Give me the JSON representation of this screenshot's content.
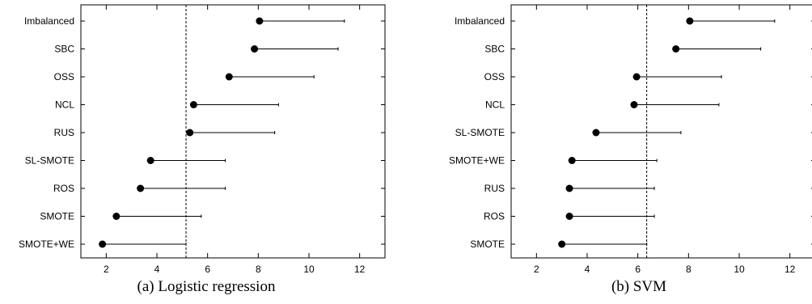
{
  "chart_data": [
    {
      "type": "dot-interval",
      "caption": "(a)  Logistic regression",
      "xlim": [
        1,
        13
      ],
      "xticks": [
        2,
        4,
        6,
        8,
        10,
        12
      ],
      "reference_line": 5.15,
      "grid": false,
      "rows": [
        {
          "label": "Imbalanced",
          "value": 8.05,
          "upper": 11.4
        },
        {
          "label": "SBC",
          "value": 7.85,
          "upper": 11.15
        },
        {
          "label": "OSS",
          "value": 6.85,
          "upper": 10.2
        },
        {
          "label": "NCL",
          "value": 5.45,
          "upper": 8.8
        },
        {
          "label": "RUS",
          "value": 5.3,
          "upper": 8.65
        },
        {
          "label": "SL-SMOTE",
          "value": 3.75,
          "upper": 6.7
        },
        {
          "label": "ROS",
          "value": 3.35,
          "upper": 6.7
        },
        {
          "label": "SMOTE",
          "value": 2.4,
          "upper": 5.75
        },
        {
          "label": "SMOTE+WE",
          "value": 1.85,
          "upper": 5.15
        }
      ]
    },
    {
      "type": "dot-interval",
      "caption": "(b)  SVM",
      "xlim": [
        1,
        13
      ],
      "xticks": [
        2,
        4,
        6,
        8,
        10,
        12
      ],
      "reference_line": 6.35,
      "grid": false,
      "rows": [
        {
          "label": "Imbalanced",
          "value": 8.05,
          "upper": 11.4
        },
        {
          "label": "SBC",
          "value": 7.5,
          "upper": 10.85
        },
        {
          "label": "OSS",
          "value": 5.95,
          "upper": 9.3
        },
        {
          "label": "NCL",
          "value": 5.85,
          "upper": 9.2
        },
        {
          "label": "SL-SMOTE",
          "value": 4.35,
          "upper": 7.7
        },
        {
          "label": "SMOTE+WE",
          "value": 3.4,
          "upper": 6.75
        },
        {
          "label": "RUS",
          "value": 3.3,
          "upper": 6.65
        },
        {
          "label": "ROS",
          "value": 3.3,
          "upper": 6.65
        },
        {
          "label": "SMOTE",
          "value": 3.0,
          "upper": 6.35
        }
      ]
    }
  ]
}
